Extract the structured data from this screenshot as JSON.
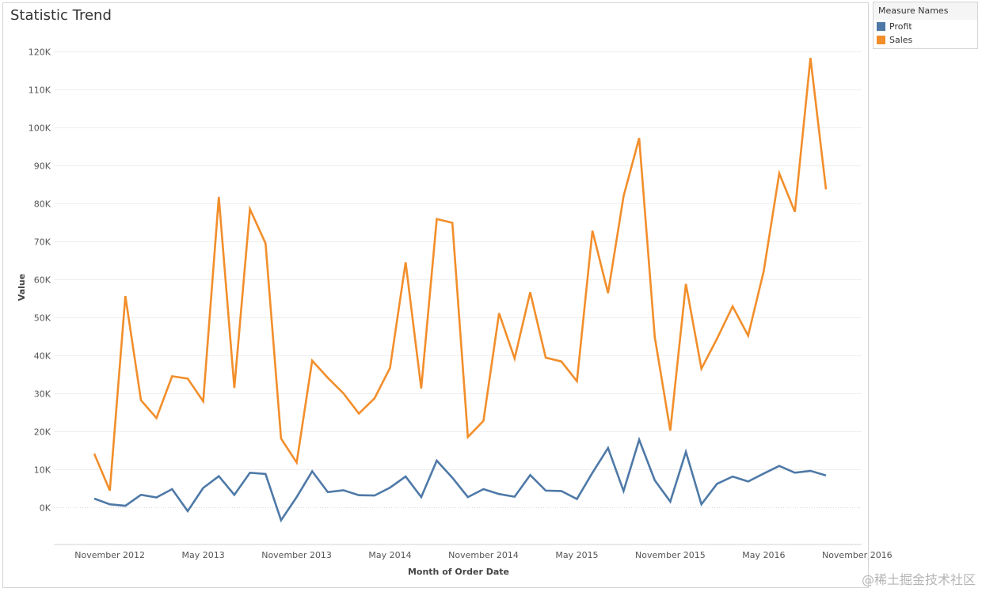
{
  "chart_data": {
    "type": "line",
    "title": "Statistic Trend",
    "xlabel": "Month of Order Date",
    "ylabel": "Value",
    "ylim": [
      -10000,
      125000
    ],
    "yticks": [
      0,
      10000,
      20000,
      30000,
      40000,
      50000,
      60000,
      70000,
      80000,
      90000,
      100000,
      110000,
      120000
    ],
    "ytick_labels": [
      "0K",
      "10K",
      "20K",
      "30K",
      "40K",
      "50K",
      "60K",
      "70K",
      "80K",
      "90K",
      "100K",
      "110K",
      "120K"
    ],
    "grid": true,
    "legend_position": "right",
    "x": [
      "2012-10",
      "2012-11",
      "2012-12",
      "2013-01",
      "2013-02",
      "2013-03",
      "2013-04",
      "2013-05",
      "2013-06",
      "2013-07",
      "2013-08",
      "2013-09",
      "2013-10",
      "2013-11",
      "2013-12",
      "2014-01",
      "2014-02",
      "2014-03",
      "2014-04",
      "2014-05",
      "2014-06",
      "2014-07",
      "2014-08",
      "2014-09",
      "2014-10",
      "2014-11",
      "2014-12",
      "2015-01",
      "2015-02",
      "2015-03",
      "2015-04",
      "2015-05",
      "2015-06",
      "2015-07",
      "2015-08",
      "2015-09",
      "2015-10",
      "2015-11",
      "2015-12",
      "2016-01",
      "2016-02",
      "2016-03",
      "2016-04",
      "2016-05",
      "2016-06",
      "2016-07",
      "2016-08",
      "2016-09",
      "2016-10",
      "2016-11"
    ],
    "xtick_labels": [
      {
        "x": "2012-11",
        "label": "November 2012"
      },
      {
        "x": "2013-05",
        "label": "May 2013"
      },
      {
        "x": "2013-11",
        "label": "November 2013"
      },
      {
        "x": "2014-05",
        "label": "May 2014"
      },
      {
        "x": "2014-11",
        "label": "November 2014"
      },
      {
        "x": "2015-05",
        "label": "May 2015"
      },
      {
        "x": "2015-11",
        "label": "November 2015"
      },
      {
        "x": "2016-05",
        "label": "May 2016"
      },
      {
        "x": "2016-11",
        "label": "November 2016"
      }
    ],
    "series": [
      {
        "name": "Profit",
        "color": "#4e79a7",
        "values": [
          2400,
          900,
          500,
          3400,
          2700,
          4900,
          -900,
          5200,
          8300,
          3400,
          9200,
          8900,
          -3300,
          2800,
          9600,
          4100,
          4600,
          3300,
          3200,
          5300,
          8200,
          2800,
          12400,
          7900,
          2800,
          4900,
          3600,
          2900,
          8600,
          4500,
          4400,
          2300,
          9200,
          15700,
          4400,
          17900,
          7200,
          1600,
          14700,
          900,
          6300,
          8200,
          6900,
          9000,
          11000,
          9200,
          9700,
          8500,
          null,
          null
        ]
      },
      {
        "name": "Sales",
        "color": "#f28e2b",
        "values": [
          14200,
          4500,
          55700,
          28300,
          23600,
          34600,
          34000,
          28000,
          81800,
          31500,
          78600,
          69600,
          18200,
          11900,
          38700,
          34200,
          30100,
          24800,
          28800,
          36800,
          64600,
          31400,
          76000,
          75000,
          18600,
          22900,
          51200,
          39300,
          56700,
          39500,
          38500,
          33300,
          72900,
          56500,
          82000,
          97300,
          44900,
          20300,
          58900,
          36600,
          44500,
          53000,
          45300,
          62300,
          88000,
          77900,
          118400,
          83800,
          null,
          null
        ]
      }
    ]
  },
  "legend": {
    "title": "Measure Names",
    "items": [
      {
        "label": "Profit",
        "color": "#4e79a7"
      },
      {
        "label": "Sales",
        "color": "#f28e2b"
      }
    ]
  },
  "watermark": "@稀土掘金技术社区"
}
